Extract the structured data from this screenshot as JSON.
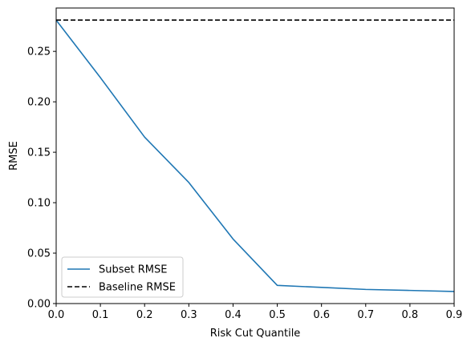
{
  "chart_data": {
    "type": "line",
    "title": "",
    "xlabel": "Risk Cut Quantile",
    "ylabel": "RMSE",
    "xlim": [
      0.0,
      0.9
    ],
    "ylim": [
      0.0,
      0.293
    ],
    "xticks": [
      0.0,
      0.1,
      0.2,
      0.3,
      0.4,
      0.5,
      0.6,
      0.7,
      0.8,
      0.9
    ],
    "xtick_labels": [
      "0.0",
      "0.1",
      "0.2",
      "0.3",
      "0.4",
      "0.5",
      "0.6",
      "0.7",
      "0.8",
      "0.9"
    ],
    "yticks": [
      0.0,
      0.05,
      0.1,
      0.15,
      0.2,
      0.25
    ],
    "ytick_labels": [
      "0.00",
      "0.05",
      "0.10",
      "0.15",
      "0.20",
      "0.25"
    ],
    "grid": false,
    "legend_position": "lower-left",
    "series": [
      {
        "name": "Subset RMSE",
        "style": "solid",
        "color": "#1f77b4",
        "x": [
          0.0,
          0.1,
          0.2,
          0.3,
          0.4,
          0.5,
          0.6,
          0.7,
          0.8,
          0.9
        ],
        "values": [
          0.281,
          0.224,
          0.165,
          0.12,
          0.064,
          0.018,
          0.016,
          0.014,
          0.013,
          0.012
        ]
      },
      {
        "name": "Baseline RMSE",
        "style": "dashed",
        "color": "#000000",
        "x": [
          0.0,
          0.9
        ],
        "values": [
          0.281,
          0.281
        ]
      }
    ]
  }
}
